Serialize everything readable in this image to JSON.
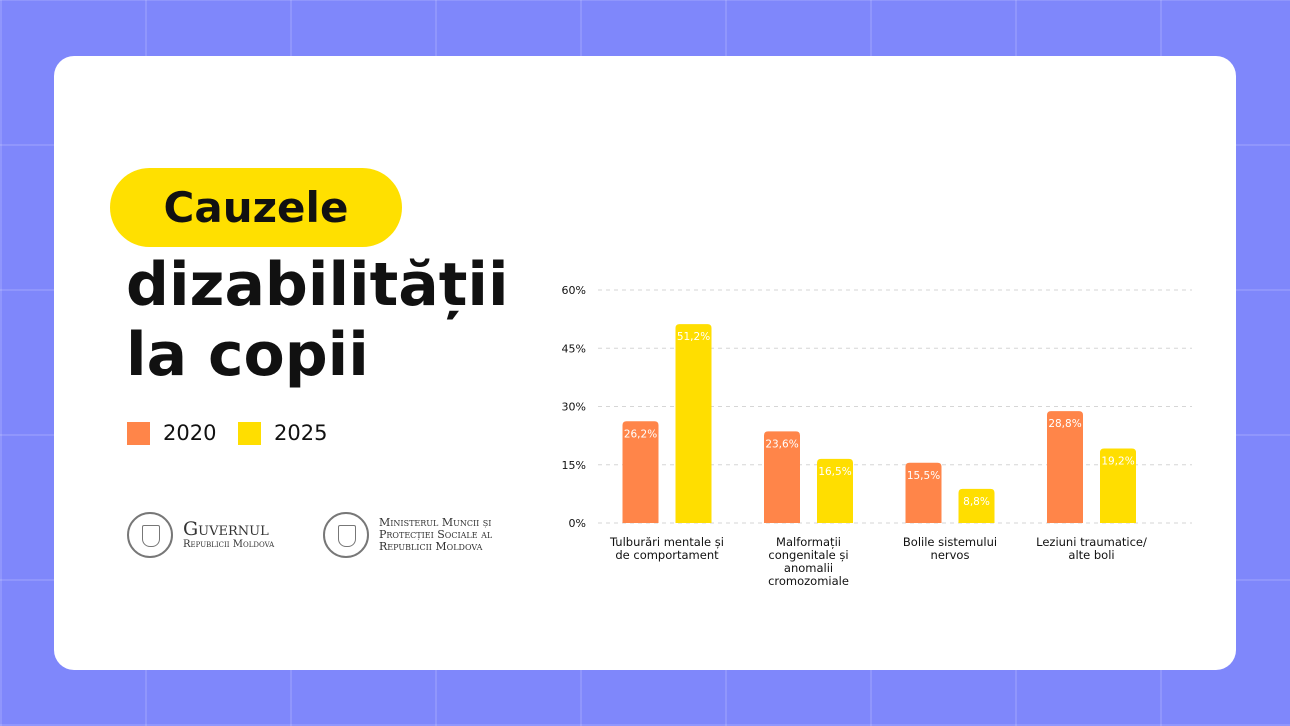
{
  "chart_data": {
    "type": "bar",
    "title_highlight": "Cauzele",
    "title": [
      "dizabilității",
      "la copii"
    ],
    "categories": [
      "Tulburări mentale și de comportament",
      "Malformații congenitale și anomalii cromozomiale",
      "Bolile sistemului nervos",
      "Leziuni traumatice/ alte boli"
    ],
    "series": [
      {
        "name": "2020",
        "color": "#ff8549",
        "values": [
          26.2,
          23.6,
          15.5,
          28.8
        ],
        "value_labels": [
          "26,2%",
          "23,6%",
          "15,5%",
          "28,8%"
        ]
      },
      {
        "name": "2025",
        "color": "#ffde00",
        "values": [
          51.2,
          16.5,
          8.8,
          19.2
        ],
        "value_labels": [
          "51,2%",
          "16,5%",
          "8,8%",
          "19,2%"
        ]
      }
    ],
    "ylim": [
      0,
      60
    ],
    "yticks": [
      {
        "value": 0,
        "label": "0%"
      },
      {
        "value": 15,
        "label": "15%"
      },
      {
        "value": 30,
        "label": "30%"
      },
      {
        "value": 45,
        "label": "45%"
      },
      {
        "value": 60,
        "label": "60%"
      }
    ],
    "grid": true
  },
  "logos": [
    {
      "lines": [
        "Guvernul",
        "Republicii Moldova"
      ]
    },
    {
      "lines": [
        "Ministerul Muncii și",
        "Protecției Sociale al",
        "Republicii Moldova"
      ]
    }
  ]
}
